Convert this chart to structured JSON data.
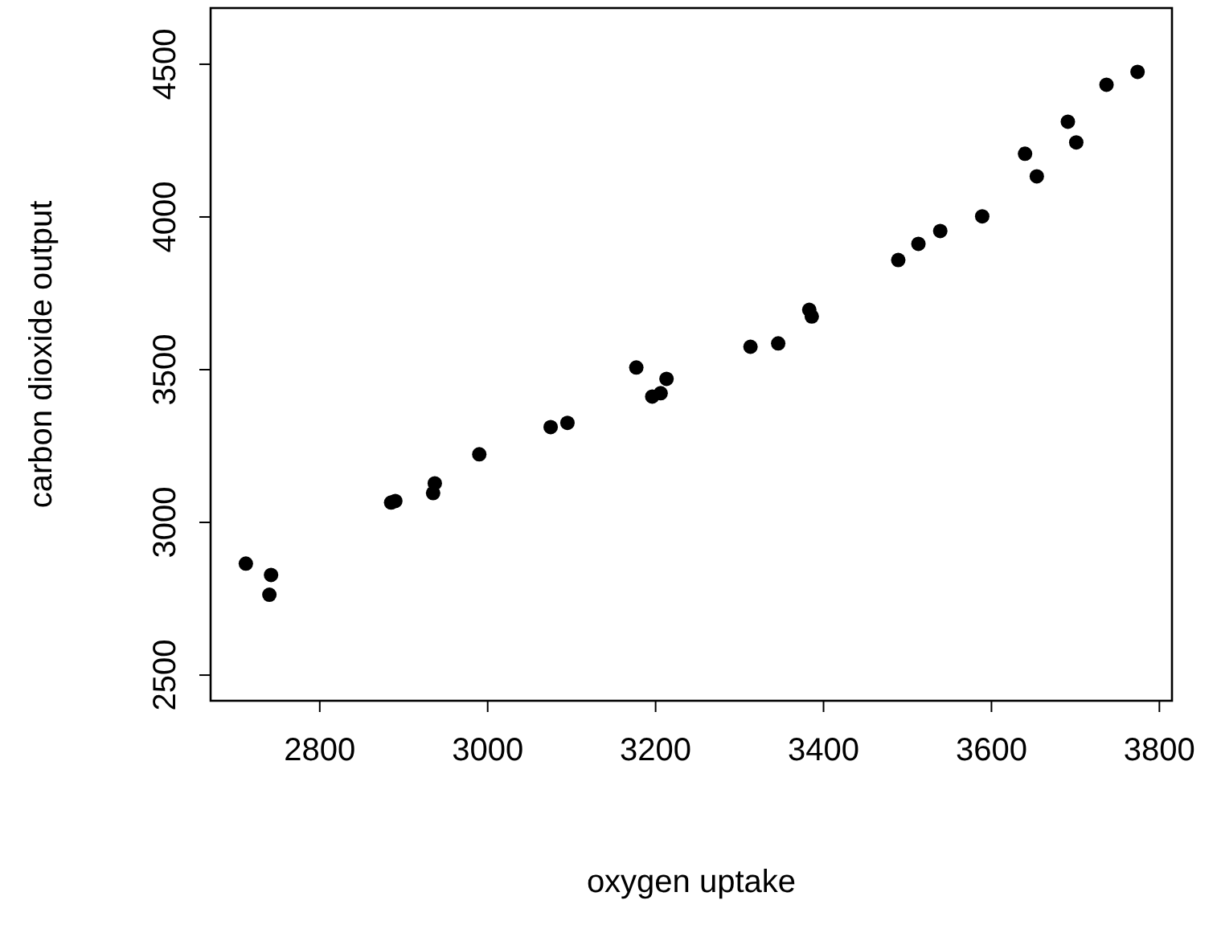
{
  "chart_data": {
    "type": "scatter",
    "xlabel": "oxygen uptake",
    "ylabel": "carbon dioxide output",
    "marker": "circle",
    "xlim": [
      2670,
      3815
    ],
    "ylim": [
      2416,
      4684
    ],
    "xticks": [
      2800,
      3000,
      3200,
      3400,
      3600,
      3800
    ],
    "yticks": [
      2500,
      3000,
      3500,
      4000,
      4500
    ],
    "series": [
      {
        "color": "#000000",
        "x": [
          2712,
          2742,
          2740,
          2885,
          2890,
          2935,
          2937,
          2990,
          3075,
          3095,
          3177,
          3196,
          3206,
          3213,
          3313,
          3346,
          3383,
          3386,
          3489,
          3513,
          3539,
          3589,
          3640,
          3654,
          3691,
          3701,
          3737,
          3774
        ],
        "values": [
          2865,
          2828,
          2763,
          3065,
          3070,
          3096,
          3128,
          3223,
          3312,
          3326,
          3507,
          3412,
          3423,
          3470,
          3575,
          3586,
          3696,
          3674,
          3859,
          3912,
          3954,
          4002,
          4207,
          4133,
          4312,
          4244,
          4433,
          4475
        ]
      }
    ]
  }
}
